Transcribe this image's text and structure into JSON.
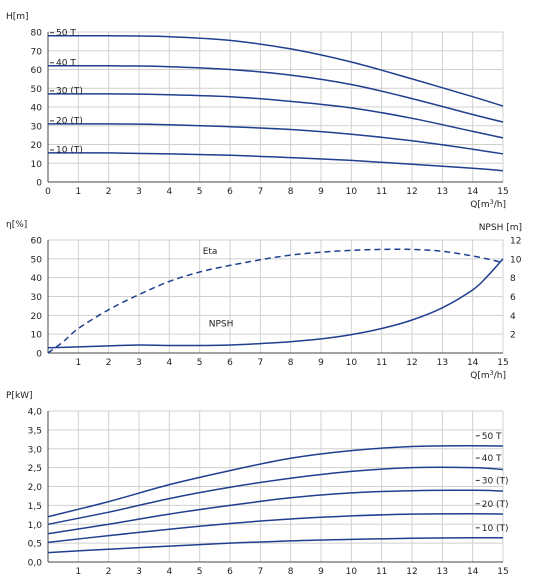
{
  "chart_data": [
    {
      "type": "line",
      "ylabel": "H[m]",
      "xlabel": "Q[m³/h]",
      "xlim": [
        0,
        15
      ],
      "ylim": [
        0,
        80
      ],
      "xticks": [
        0,
        1,
        2,
        3,
        4,
        5,
        6,
        7,
        8,
        9,
        10,
        11,
        12,
        13,
        14,
        15
      ],
      "yticks": [
        0,
        10,
        20,
        30,
        40,
        50,
        60,
        70,
        80
      ],
      "grid": true,
      "line_color": "#1f3f8f",
      "series": [
        {
          "name": "50 T",
          "x": [
            0,
            2,
            4,
            6,
            8,
            10,
            12,
            14,
            15
          ],
          "values": [
            78,
            78,
            77.5,
            75.5,
            71,
            64,
            55,
            45.5,
            40.5
          ]
        },
        {
          "name": "40 T",
          "x": [
            0,
            2,
            4,
            6,
            8,
            10,
            12,
            14,
            15
          ],
          "values": [
            62,
            62,
            61.5,
            60,
            57,
            52,
            44.5,
            36,
            32
          ]
        },
        {
          "name": "30 (T)",
          "x": [
            0,
            2,
            4,
            6,
            8,
            10,
            12,
            14,
            15
          ],
          "values": [
            47,
            47,
            46.5,
            45.5,
            43,
            39.5,
            34,
            27,
            23.5
          ]
        },
        {
          "name": "20 (T)",
          "x": [
            0,
            2,
            4,
            6,
            8,
            10,
            12,
            14,
            15
          ],
          "values": [
            31,
            31,
            30.5,
            29.5,
            28,
            25.5,
            22,
            17.5,
            15
          ]
        },
        {
          "name": "10 (T)",
          "x": [
            0,
            2,
            4,
            6,
            8,
            10,
            12,
            14,
            15
          ],
          "values": [
            15.5,
            15.5,
            15,
            14.3,
            13,
            11.5,
            9.5,
            7.3,
            6
          ]
        }
      ]
    },
    {
      "type": "line",
      "ylabel": "η[%]",
      "ylabel_right": "NPSH [m]",
      "xlabel": "Q[m³/h]",
      "xlim": [
        0,
        15
      ],
      "ylim": [
        0,
        60
      ],
      "ylim_right": [
        0,
        12
      ],
      "xticks": [
        1,
        2,
        3,
        4,
        5,
        6,
        7,
        8,
        9,
        10,
        11,
        12,
        13,
        14,
        15
      ],
      "yticks": [
        0,
        10,
        20,
        30,
        40,
        50,
        60
      ],
      "yticks_right": [
        2,
        4,
        6,
        8,
        10,
        12
      ],
      "grid": true,
      "line_color": "#1f3f8f",
      "series": [
        {
          "name": "Eta",
          "axis": "left",
          "dashed": true,
          "x": [
            0,
            0.5,
            1,
            2,
            3,
            4,
            5,
            6,
            7,
            8,
            9,
            10,
            11,
            12,
            13,
            14,
            14.6,
            15
          ],
          "values": [
            0,
            6,
            13,
            23,
            31,
            38,
            43,
            46.5,
            49.5,
            52,
            53.5,
            54.5,
            55,
            55,
            54,
            51.5,
            49.5,
            48
          ]
        },
        {
          "name": "NPSH",
          "axis": "right",
          "dashed": false,
          "x": [
            0,
            1,
            2,
            3,
            4,
            5,
            6,
            7,
            8,
            9,
            10,
            11,
            12,
            13,
            14,
            14.5,
            15
          ],
          "values": [
            0.55,
            0.65,
            0.75,
            0.85,
            0.8,
            0.8,
            0.85,
            1.0,
            1.2,
            1.5,
            1.95,
            2.6,
            3.5,
            4.8,
            6.7,
            8.2,
            10
          ]
        }
      ]
    },
    {
      "type": "line",
      "ylabel": "P[kW]",
      "xlim": [
        0,
        15
      ],
      "ylim": [
        0,
        4
      ],
      "xticks": [
        1,
        2,
        3,
        4,
        5,
        6,
        7,
        8,
        9,
        10,
        11,
        12,
        13,
        14,
        15
      ],
      "yticks": [
        "0,0",
        "0,5",
        "1,0",
        "1,5",
        "2,0",
        "2,5",
        "3,0",
        "3,5",
        "4,0"
      ],
      "grid": true,
      "line_color": "#1f3f8f",
      "series": [
        {
          "name": "50 T",
          "x": [
            0,
            2,
            4,
            6,
            8,
            10,
            12,
            14,
            15
          ],
          "values": [
            1.2,
            1.6,
            2.05,
            2.42,
            2.75,
            2.95,
            3.06,
            3.08,
            3.07
          ]
        },
        {
          "name": "40 T",
          "x": [
            0,
            2,
            4,
            6,
            8,
            10,
            12,
            14,
            15
          ],
          "values": [
            1.0,
            1.32,
            1.68,
            1.98,
            2.22,
            2.4,
            2.5,
            2.5,
            2.45
          ]
        },
        {
          "name": "30 (T)",
          "x": [
            0,
            2,
            4,
            6,
            8,
            10,
            12,
            14,
            15
          ],
          "values": [
            0.75,
            1.0,
            1.27,
            1.5,
            1.7,
            1.83,
            1.89,
            1.9,
            1.88
          ]
        },
        {
          "name": "20 (T)",
          "x": [
            0,
            2,
            4,
            6,
            8,
            10,
            12,
            14,
            15
          ],
          "values": [
            0.52,
            0.7,
            0.87,
            1.02,
            1.14,
            1.22,
            1.27,
            1.28,
            1.27
          ]
        },
        {
          "name": "10 (T)",
          "x": [
            0,
            2,
            4,
            6,
            8,
            10,
            12,
            14,
            15
          ],
          "values": [
            0.25,
            0.34,
            0.42,
            0.5,
            0.56,
            0.6,
            0.63,
            0.64,
            0.64
          ]
        }
      ]
    }
  ]
}
